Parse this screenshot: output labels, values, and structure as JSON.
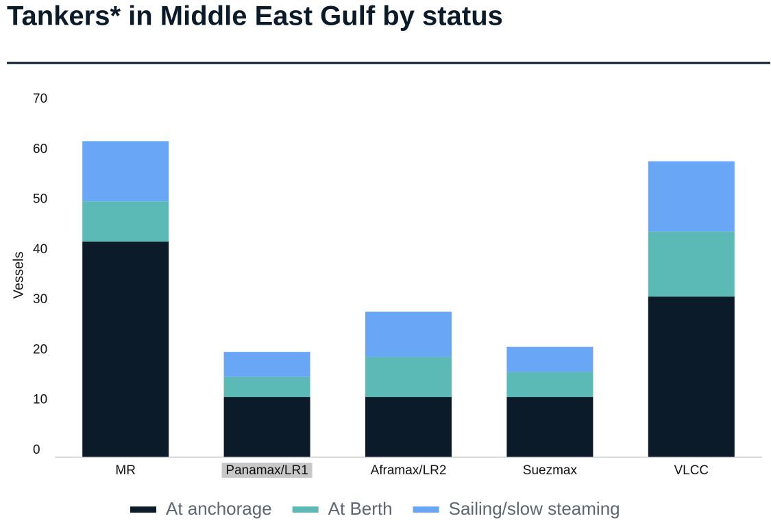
{
  "chart_data": {
    "type": "stacked_bar",
    "title": "Tankers* in Middle East Gulf by status",
    "y_label": "Vessels",
    "categories": [
      "MR",
      "Panamax/LR1",
      "Aframax/LR2",
      "Suezmax",
      "VLCC"
    ],
    "series": [
      {
        "name": "At anchorage",
        "color": "#0c1b2a",
        "values": [
          43,
          12,
          12,
          12,
          32
        ]
      },
      {
        "name": "At Berth",
        "color": "#5bbab5",
        "values": [
          8,
          4,
          8,
          5,
          13
        ]
      },
      {
        "name": "Sailing/slow steaming",
        "color": "#69a7f6",
        "values": [
          12,
          5,
          9,
          5,
          14
        ]
      }
    ],
    "ylim": [
      0,
      70
    ],
    "yticks": [
      0,
      10,
      20,
      30,
      40,
      50,
      60,
      70
    ],
    "grid": false,
    "legend": "bottom"
  }
}
